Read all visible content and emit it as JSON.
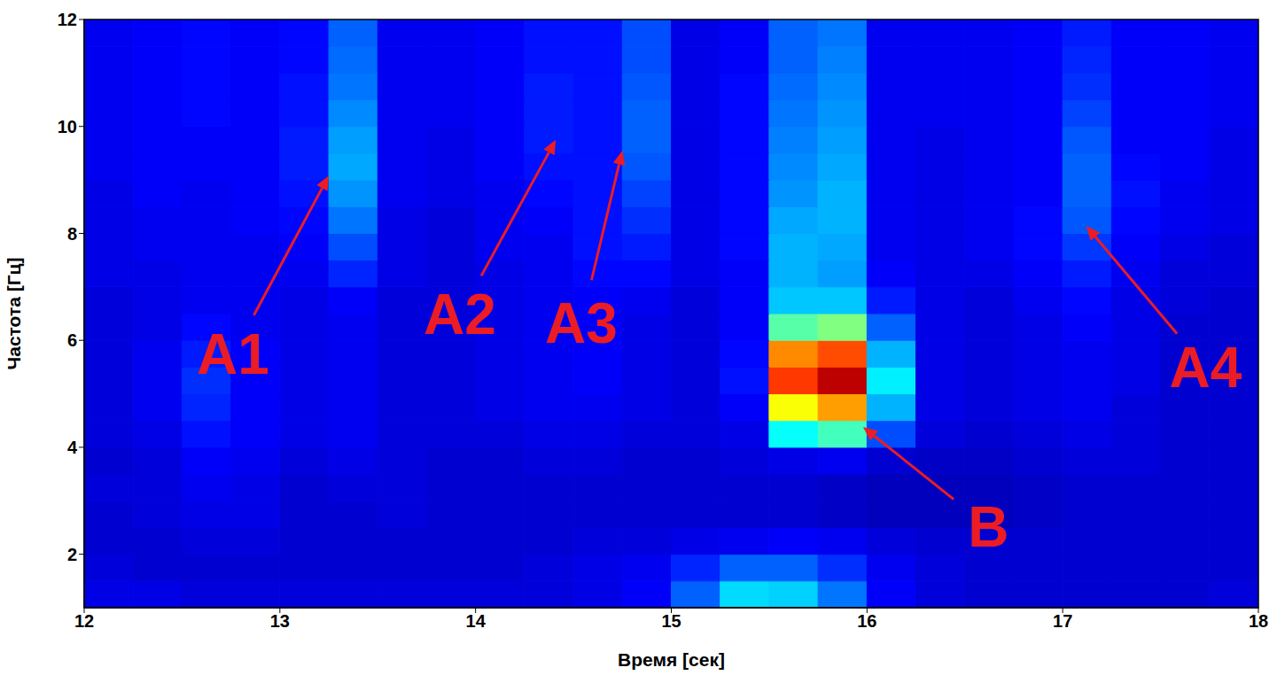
{
  "chart_data": {
    "type": "heatmap",
    "x_label": "Время [сек]",
    "y_label": "Частота [Гц]",
    "xlim": [
      12,
      18
    ],
    "xticks": [
      12,
      13,
      14,
      15,
      16,
      17,
      18
    ],
    "ylim": [
      1,
      12
    ],
    "yticks": [
      2,
      4,
      6,
      8,
      10,
      12
    ],
    "grid": false,
    "zlim": [
      0,
      100
    ],
    "xbins": [
      12,
      12.25,
      12.5,
      12.75,
      13,
      13.25,
      13.5,
      13.75,
      14,
      14.25,
      14.5,
      14.75,
      15,
      15.25,
      15.5,
      15.75,
      16,
      16.25,
      16.5,
      16.75,
      17,
      17.25,
      17.5,
      17.75,
      18
    ],
    "ybins": [
      1,
      1.5,
      2,
      2.5,
      3,
      3.5,
      4,
      4.5,
      5,
      5.5,
      6,
      6.5,
      7,
      7.5,
      8,
      8.5,
      9,
      9.5,
      10,
      10.5,
      11,
      11.5,
      12
    ],
    "z": [
      [
        10,
        10,
        9,
        9,
        9,
        9,
        9,
        9,
        9,
        9,
        10,
        12,
        22,
        34,
        33,
        24,
        12,
        9,
        8,
        8,
        8,
        8,
        8,
        9
      ],
      [
        9,
        8,
        8,
        8,
        8,
        8,
        8,
        8,
        8,
        9,
        10,
        11,
        16,
        22,
        22,
        17,
        11,
        9,
        8,
        8,
        8,
        8,
        8,
        8
      ],
      [
        8,
        8,
        9,
        9,
        8,
        8,
        8,
        8,
        8,
        8,
        9,
        9,
        10,
        11,
        12,
        11,
        9,
        8,
        8,
        8,
        8,
        8,
        8,
        8
      ],
      [
        8,
        9,
        10,
        10,
        8,
        8,
        9,
        8,
        8,
        8,
        8,
        8,
        8,
        8,
        8,
        7,
        6,
        6,
        6,
        7,
        8,
        8,
        8,
        8
      ],
      [
        9,
        9,
        11,
        10,
        8,
        9,
        9,
        8,
        8,
        8,
        8,
        8,
        8,
        8,
        8,
        7,
        6,
        6,
        6,
        7,
        8,
        8,
        8,
        8
      ],
      [
        8,
        9,
        12,
        11,
        9,
        10,
        9,
        8,
        8,
        9,
        9,
        8,
        8,
        9,
        10,
        11,
        8,
        7,
        7,
        8,
        9,
        9,
        8,
        8
      ],
      [
        9,
        10,
        14,
        12,
        10,
        11,
        9,
        9,
        9,
        10,
        10,
        9,
        9,
        10,
        38,
        44,
        20,
        9,
        8,
        9,
        10,
        9,
        8,
        8
      ],
      [
        9,
        11,
        16,
        12,
        10,
        11,
        9,
        9,
        10,
        11,
        11,
        10,
        9,
        12,
        62,
        72,
        30,
        10,
        9,
        10,
        11,
        9,
        8,
        8
      ],
      [
        9,
        11,
        17,
        12,
        10,
        11,
        9,
        9,
        10,
        11,
        12,
        10,
        9,
        14,
        82,
        94,
        36,
        10,
        9,
        10,
        11,
        10,
        8,
        8
      ],
      [
        9,
        11,
        15,
        12,
        10,
        11,
        9,
        9,
        10,
        11,
        12,
        10,
        9,
        13,
        74,
        80,
        30,
        10,
        9,
        10,
        11,
        10,
        8,
        8
      ],
      [
        9,
        10,
        13,
        11,
        10,
        11,
        9,
        9,
        10,
        11,
        12,
        10,
        9,
        12,
        46,
        50,
        22,
        10,
        9,
        10,
        12,
        10,
        8,
        8
      ],
      [
        9,
        10,
        11,
        11,
        10,
        12,
        9,
        9,
        10,
        11,
        12,
        11,
        9,
        12,
        32,
        32,
        15,
        10,
        9,
        11,
        13,
        10,
        9,
        8
      ],
      [
        10,
        10,
        11,
        11,
        11,
        16,
        10,
        9,
        10,
        11,
        13,
        13,
        10,
        12,
        30,
        28,
        12,
        10,
        10,
        12,
        15,
        11,
        9,
        9
      ],
      [
        10,
        11,
        11,
        11,
        12,
        20,
        10,
        9,
        11,
        11,
        14,
        15,
        10,
        13,
        30,
        29,
        11,
        10,
        11,
        13,
        18,
        12,
        10,
        9
      ],
      [
        10,
        11,
        11,
        12,
        13,
        24,
        10,
        9,
        11,
        12,
        14,
        17,
        10,
        13,
        29,
        30,
        11,
        10,
        11,
        13,
        21,
        13,
        11,
        10
      ],
      [
        10,
        12,
        11,
        12,
        14,
        27,
        11,
        10,
        11,
        13,
        14,
        19,
        10,
        13,
        27,
        30,
        11,
        10,
        11,
        12,
        22,
        14,
        11,
        10
      ],
      [
        11,
        12,
        12,
        12,
        15,
        29,
        11,
        10,
        12,
        14,
        14,
        21,
        10,
        13,
        26,
        29,
        11,
        10,
        11,
        12,
        22,
        13,
        12,
        10
      ],
      [
        11,
        12,
        12,
        12,
        15,
        28,
        11,
        10,
        12,
        15,
        14,
        22,
        10,
        13,
        25,
        28,
        11,
        10,
        11,
        12,
        21,
        12,
        12,
        10
      ],
      [
        11,
        12,
        13,
        12,
        14,
        26,
        11,
        11,
        12,
        15,
        14,
        22,
        10,
        13,
        24,
        27,
        11,
        11,
        11,
        12,
        19,
        12,
        12,
        11
      ],
      [
        11,
        12,
        13,
        12,
        14,
        24,
        11,
        11,
        12,
        15,
        14,
        21,
        10,
        13,
        23,
        26,
        11,
        11,
        11,
        12,
        17,
        12,
        12,
        11
      ],
      [
        11,
        12,
        13,
        12,
        13,
        23,
        11,
        11,
        12,
        14,
        14,
        20,
        10,
        12,
        22,
        25,
        11,
        11,
        11,
        12,
        16,
        12,
        12,
        11
      ],
      [
        11,
        12,
        13,
        12,
        13,
        22,
        11,
        11,
        12,
        14,
        14,
        20,
        10,
        12,
        22,
        24,
        11,
        11,
        11,
        12,
        15,
        12,
        12,
        11
      ]
    ],
    "annotations": [
      {
        "text": "A1",
        "x": 12.76,
        "y": 5.74,
        "target": [
          13.25,
          9.08
        ]
      },
      {
        "text": "A2",
        "x": 13.92,
        "y": 6.48,
        "target": [
          14.41,
          9.75
        ]
      },
      {
        "text": "A3",
        "x": 14.54,
        "y": 6.32,
        "target": [
          14.75,
          9.55
        ]
      },
      {
        "text": "A4",
        "x": 17.73,
        "y": 5.49,
        "target": [
          17.12,
          8.14
        ]
      },
      {
        "text": "B",
        "x": 16.62,
        "y": 2.51,
        "target": [
          15.98,
          4.38
        ]
      }
    ]
  }
}
